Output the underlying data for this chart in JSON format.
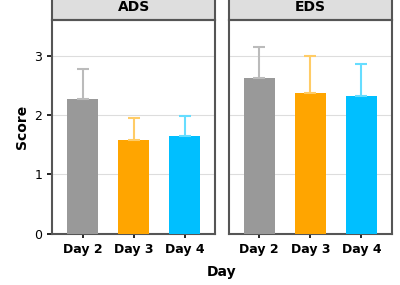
{
  "panels": [
    "ADS",
    "EDS"
  ],
  "categories": [
    "Day 2",
    "Day 3",
    "Day 4"
  ],
  "bar_colors": [
    "#999999",
    "#FFA500",
    "#00BFFF"
  ],
  "error_colors": [
    "#BBBBBB",
    "#FFCC66",
    "#66DDFF"
  ],
  "ads_values": [
    2.27,
    1.57,
    1.65
  ],
  "ads_errors": [
    0.5,
    0.38,
    0.33
  ],
  "eds_values": [
    2.62,
    2.37,
    2.32
  ],
  "eds_errors": [
    0.53,
    0.62,
    0.53
  ],
  "ylabel": "Score",
  "xlabel": "Day",
  "ylim": [
    0,
    3.6
  ],
  "yticks": [
    0,
    1,
    2,
    3
  ],
  "strip_bg": "#DEDEDE",
  "strip_border": "#555555",
  "plot_bg": "#FFFFFF",
  "outer_border": "#555555",
  "title_fontsize": 10,
  "axis_label_fontsize": 10,
  "tick_fontsize": 9,
  "bar_width": 0.6,
  "grid_color": "#DDDDDD"
}
